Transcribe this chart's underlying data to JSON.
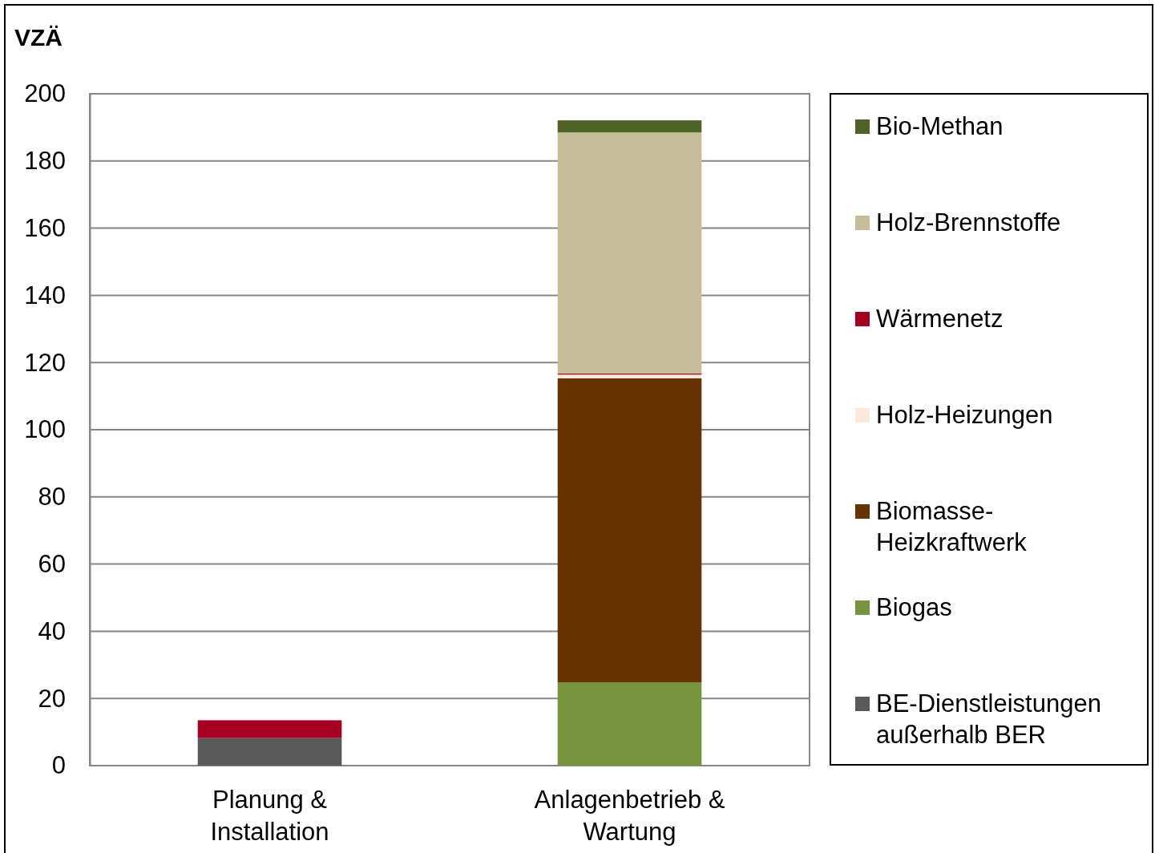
{
  "chart_data": {
    "type": "bar",
    "ylabel": "VZÄ",
    "categories": [
      "Planung & Installation",
      "Anlagenbetrieb & Wartung"
    ],
    "stacked": true,
    "ylim": [
      0,
      200
    ],
    "yticks": [
      0,
      20,
      40,
      60,
      80,
      100,
      120,
      140,
      160,
      180,
      200
    ],
    "grid": "y",
    "legend": "right",
    "series": [
      {
        "name": "BE-Dienstleistungen außerhalb BER",
        "color": "#595959",
        "values": [
          8.2,
          0
        ]
      },
      {
        "name": "Biogas",
        "color": "#77933c",
        "values": [
          0,
          24.8
        ]
      },
      {
        "name": "Biomasse-Heizkraftwerk",
        "color": "#663300",
        "values": [
          0,
          90.5
        ]
      },
      {
        "name": "Holz-Heizungen",
        "color": "#fde9d9",
        "values": [
          0,
          1.1
        ]
      },
      {
        "name": "Wärmenetz",
        "color": "#a50021",
        "values": [
          5.3,
          0.3
        ]
      },
      {
        "name": "Holz-Brennstoffe",
        "color": "#c4bd97",
        "values": [
          0,
          71.8
        ]
      },
      {
        "name": "Bio-Methan",
        "color": "#4f6228",
        "values": [
          0,
          3.6
        ]
      }
    ]
  }
}
